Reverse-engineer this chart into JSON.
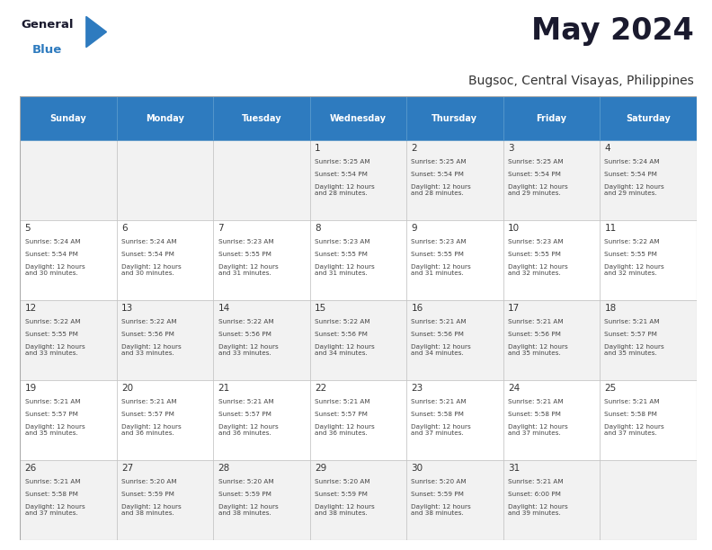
{
  "title": "May 2024",
  "subtitle": "Bugsoc, Central Visayas, Philippines",
  "header_bg": "#2E7BBF",
  "header_text": "#FFFFFF",
  "days_of_week": [
    "Sunday",
    "Monday",
    "Tuesday",
    "Wednesday",
    "Thursday",
    "Friday",
    "Saturday"
  ],
  "row_bg_odd": "#F2F2F2",
  "row_bg_even": "#FFFFFF",
  "cell_border": "#BBBBBB",
  "date_color": "#333333",
  "info_color": "#444444",
  "calendar": [
    [
      {
        "day": "",
        "sunrise": "",
        "sunset": "",
        "daylight": ""
      },
      {
        "day": "",
        "sunrise": "",
        "sunset": "",
        "daylight": ""
      },
      {
        "day": "",
        "sunrise": "",
        "sunset": "",
        "daylight": ""
      },
      {
        "day": "1",
        "sunrise": "5:25 AM",
        "sunset": "5:54 PM",
        "daylight": "12 hours\nand 28 minutes."
      },
      {
        "day": "2",
        "sunrise": "5:25 AM",
        "sunset": "5:54 PM",
        "daylight": "12 hours\nand 28 minutes."
      },
      {
        "day": "3",
        "sunrise": "5:25 AM",
        "sunset": "5:54 PM",
        "daylight": "12 hours\nand 29 minutes."
      },
      {
        "day": "4",
        "sunrise": "5:24 AM",
        "sunset": "5:54 PM",
        "daylight": "12 hours\nand 29 minutes."
      }
    ],
    [
      {
        "day": "5",
        "sunrise": "5:24 AM",
        "sunset": "5:54 PM",
        "daylight": "12 hours\nand 30 minutes."
      },
      {
        "day": "6",
        "sunrise": "5:24 AM",
        "sunset": "5:54 PM",
        "daylight": "12 hours\nand 30 minutes."
      },
      {
        "day": "7",
        "sunrise": "5:23 AM",
        "sunset": "5:55 PM",
        "daylight": "12 hours\nand 31 minutes."
      },
      {
        "day": "8",
        "sunrise": "5:23 AM",
        "sunset": "5:55 PM",
        "daylight": "12 hours\nand 31 minutes."
      },
      {
        "day": "9",
        "sunrise": "5:23 AM",
        "sunset": "5:55 PM",
        "daylight": "12 hours\nand 31 minutes."
      },
      {
        "day": "10",
        "sunrise": "5:23 AM",
        "sunset": "5:55 PM",
        "daylight": "12 hours\nand 32 minutes."
      },
      {
        "day": "11",
        "sunrise": "5:22 AM",
        "sunset": "5:55 PM",
        "daylight": "12 hours\nand 32 minutes."
      }
    ],
    [
      {
        "day": "12",
        "sunrise": "5:22 AM",
        "sunset": "5:55 PM",
        "daylight": "12 hours\nand 33 minutes."
      },
      {
        "day": "13",
        "sunrise": "5:22 AM",
        "sunset": "5:56 PM",
        "daylight": "12 hours\nand 33 minutes."
      },
      {
        "day": "14",
        "sunrise": "5:22 AM",
        "sunset": "5:56 PM",
        "daylight": "12 hours\nand 33 minutes."
      },
      {
        "day": "15",
        "sunrise": "5:22 AM",
        "sunset": "5:56 PM",
        "daylight": "12 hours\nand 34 minutes."
      },
      {
        "day": "16",
        "sunrise": "5:21 AM",
        "sunset": "5:56 PM",
        "daylight": "12 hours\nand 34 minutes."
      },
      {
        "day": "17",
        "sunrise": "5:21 AM",
        "sunset": "5:56 PM",
        "daylight": "12 hours\nand 35 minutes."
      },
      {
        "day": "18",
        "sunrise": "5:21 AM",
        "sunset": "5:57 PM",
        "daylight": "12 hours\nand 35 minutes."
      }
    ],
    [
      {
        "day": "19",
        "sunrise": "5:21 AM",
        "sunset": "5:57 PM",
        "daylight": "12 hours\nand 35 minutes."
      },
      {
        "day": "20",
        "sunrise": "5:21 AM",
        "sunset": "5:57 PM",
        "daylight": "12 hours\nand 36 minutes."
      },
      {
        "day": "21",
        "sunrise": "5:21 AM",
        "sunset": "5:57 PM",
        "daylight": "12 hours\nand 36 minutes."
      },
      {
        "day": "22",
        "sunrise": "5:21 AM",
        "sunset": "5:57 PM",
        "daylight": "12 hours\nand 36 minutes."
      },
      {
        "day": "23",
        "sunrise": "5:21 AM",
        "sunset": "5:58 PM",
        "daylight": "12 hours\nand 37 minutes."
      },
      {
        "day": "24",
        "sunrise": "5:21 AM",
        "sunset": "5:58 PM",
        "daylight": "12 hours\nand 37 minutes."
      },
      {
        "day": "25",
        "sunrise": "5:21 AM",
        "sunset": "5:58 PM",
        "daylight": "12 hours\nand 37 minutes."
      }
    ],
    [
      {
        "day": "26",
        "sunrise": "5:21 AM",
        "sunset": "5:58 PM",
        "daylight": "12 hours\nand 37 minutes."
      },
      {
        "day": "27",
        "sunrise": "5:20 AM",
        "sunset": "5:59 PM",
        "daylight": "12 hours\nand 38 minutes."
      },
      {
        "day": "28",
        "sunrise": "5:20 AM",
        "sunset": "5:59 PM",
        "daylight": "12 hours\nand 38 minutes."
      },
      {
        "day": "29",
        "sunrise": "5:20 AM",
        "sunset": "5:59 PM",
        "daylight": "12 hours\nand 38 minutes."
      },
      {
        "day": "30",
        "sunrise": "5:20 AM",
        "sunset": "5:59 PM",
        "daylight": "12 hours\nand 38 minutes."
      },
      {
        "day": "31",
        "sunrise": "5:21 AM",
        "sunset": "6:00 PM",
        "daylight": "12 hours\nand 39 minutes."
      },
      {
        "day": "",
        "sunrise": "",
        "sunset": "",
        "daylight": ""
      }
    ]
  ]
}
